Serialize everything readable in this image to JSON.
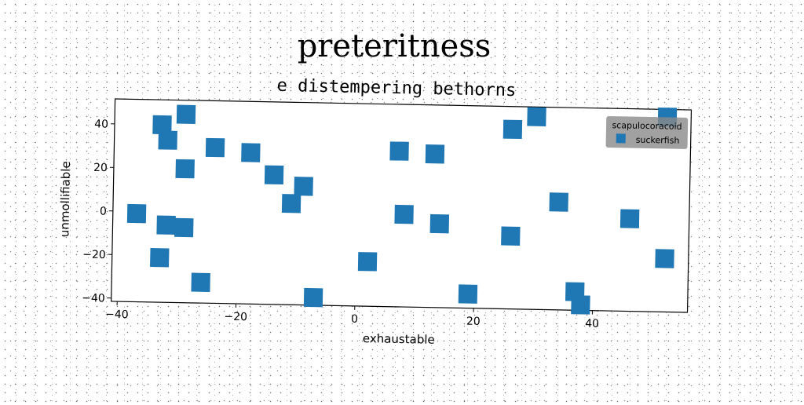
{
  "chart_data": {
    "type": "scatter",
    "title": "preteritness",
    "subtitle": "e distempering bethorns",
    "xlabel": "exhaustable",
    "ylabel": "unmollifiable",
    "xlim": [
      -41,
      56
    ],
    "ylim": [
      -41.5,
      51.5
    ],
    "xticks": [
      -40,
      -20,
      0,
      20,
      40
    ],
    "yticks": [
      -40,
      -20,
      0,
      20,
      40
    ],
    "xtick_labels": [
      "−40",
      "−20",
      "0",
      "20",
      "40"
    ],
    "ytick_labels": [
      "−40",
      "−20",
      "0",
      "20",
      "40"
    ],
    "grid": false,
    "legend": {
      "title": "scapulocoracoid",
      "placement": "top-right",
      "entries": [
        "suckerfish"
      ]
    },
    "series": [
      {
        "name": "suckerfish",
        "color": "#1f77b4",
        "marker": "square",
        "points": [
          [
            -33,
            40
          ],
          [
            -29,
            45
          ],
          [
            -32,
            33
          ],
          [
            -24,
            30
          ],
          [
            -18,
            28
          ],
          [
            -29,
            20
          ],
          [
            -14,
            18
          ],
          [
            -9,
            13
          ],
          [
            -11,
            5
          ],
          [
            -37,
            -1
          ],
          [
            -32,
            -6
          ],
          [
            -29,
            -7
          ],
          [
            -33,
            -21
          ],
          [
            -26,
            -32
          ],
          [
            -7,
            -38
          ],
          [
            2,
            -21
          ],
          [
            7,
            30
          ],
          [
            8,
            1
          ],
          [
            13,
            29
          ],
          [
            14,
            -3
          ],
          [
            19,
            -35
          ],
          [
            26,
            41
          ],
          [
            26,
            -8
          ],
          [
            30,
            47
          ],
          [
            34,
            8
          ],
          [
            37,
            -33
          ],
          [
            38,
            -39
          ],
          [
            46,
            1
          ],
          [
            52,
            -17
          ],
          [
            52,
            48
          ]
        ]
      }
    ]
  }
}
